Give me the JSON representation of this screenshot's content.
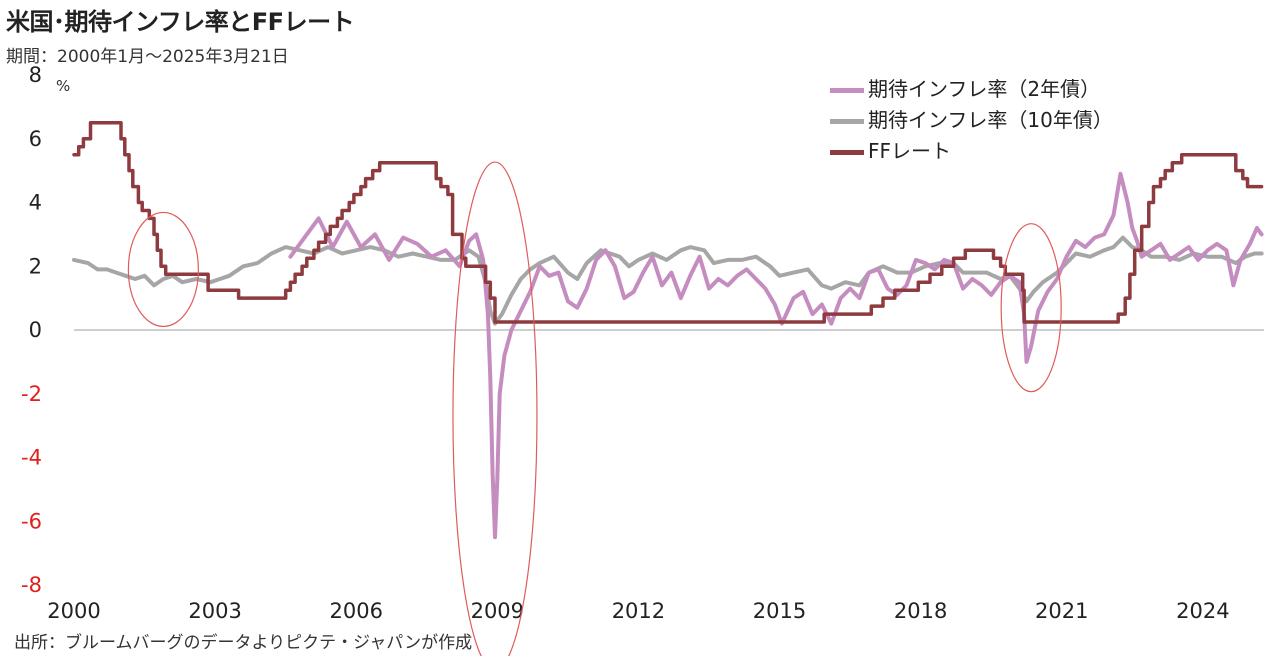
{
  "title": "米国･期待インフレ率とFFレート",
  "subtitle": "期間：2000年1月～2025年3月21日",
  "source": "出所：ブルームバーグのデータよりピクテ・ジャパンが作成",
  "colors": {
    "inflation_2y": "#c58cc0",
    "inflation_10y": "#a6a6a6",
    "ff_rate": "#8e3b3f",
    "axis_negative": "#e0201b",
    "zero_line": "#bfbfbf",
    "ellipse": "#e05b5b"
  },
  "chart_data": {
    "type": "line",
    "title": "米国･期待インフレ率とFFレート",
    "unit_label": "%",
    "xlim": [
      2000.0,
      2025.3
    ],
    "ylim": [
      -8,
      8
    ],
    "y_ticks": [
      8,
      6,
      4,
      2,
      0,
      -2,
      -4,
      -6,
      -8
    ],
    "x_tick_labels": [
      "2000",
      "2003",
      "2006",
      "2009",
      "2012",
      "2015",
      "2018",
      "2021",
      "2024"
    ],
    "grid": false,
    "legend_position": "top-right",
    "series": [
      {
        "name": "期待インフレ率（2年債）",
        "key": "inflation_2y",
        "points": [
          [
            2004.6,
            2.3
          ],
          [
            2004.9,
            2.9
          ],
          [
            2005.2,
            3.5
          ],
          [
            2005.5,
            2.6
          ],
          [
            2005.8,
            3.4
          ],
          [
            2006.1,
            2.6
          ],
          [
            2006.4,
            3.0
          ],
          [
            2006.7,
            2.2
          ],
          [
            2007.0,
            2.9
          ],
          [
            2007.3,
            2.7
          ],
          [
            2007.6,
            2.3
          ],
          [
            2007.9,
            2.5
          ],
          [
            2008.2,
            2.0
          ],
          [
            2008.4,
            2.8
          ],
          [
            2008.55,
            3.0
          ],
          [
            2008.7,
            2.2
          ],
          [
            2008.8,
            0.5
          ],
          [
            2008.85,
            -1.5
          ],
          [
            2008.9,
            -4.5
          ],
          [
            2008.95,
            -6.5
          ],
          [
            2009.0,
            -4.7
          ],
          [
            2009.05,
            -2.0
          ],
          [
            2009.15,
            -0.8
          ],
          [
            2009.3,
            0.0
          ],
          [
            2009.5,
            0.6
          ],
          [
            2009.7,
            1.2
          ],
          [
            2009.9,
            2.0
          ],
          [
            2010.1,
            1.7
          ],
          [
            2010.3,
            1.8
          ],
          [
            2010.5,
            0.9
          ],
          [
            2010.7,
            0.7
          ],
          [
            2010.9,
            1.3
          ],
          [
            2011.1,
            2.2
          ],
          [
            2011.3,
            2.5
          ],
          [
            2011.5,
            2.0
          ],
          [
            2011.7,
            1.0
          ],
          [
            2011.9,
            1.2
          ],
          [
            2012.1,
            1.8
          ],
          [
            2012.3,
            2.3
          ],
          [
            2012.5,
            1.4
          ],
          [
            2012.7,
            1.8
          ],
          [
            2012.9,
            1.0
          ],
          [
            2013.1,
            1.7
          ],
          [
            2013.3,
            2.3
          ],
          [
            2013.5,
            1.3
          ],
          [
            2013.7,
            1.6
          ],
          [
            2013.9,
            1.4
          ],
          [
            2014.1,
            1.7
          ],
          [
            2014.3,
            1.9
          ],
          [
            2014.5,
            1.6
          ],
          [
            2014.7,
            1.3
          ],
          [
            2014.9,
            0.8
          ],
          [
            2015.05,
            0.2
          ],
          [
            2015.3,
            1.0
          ],
          [
            2015.5,
            1.2
          ],
          [
            2015.7,
            0.5
          ],
          [
            2015.9,
            0.8
          ],
          [
            2016.1,
            0.2
          ],
          [
            2016.3,
            1.0
          ],
          [
            2016.5,
            1.3
          ],
          [
            2016.7,
            1.0
          ],
          [
            2016.9,
            1.8
          ],
          [
            2017.1,
            1.9
          ],
          [
            2017.3,
            1.3
          ],
          [
            2017.5,
            1.1
          ],
          [
            2017.7,
            1.4
          ],
          [
            2017.9,
            2.2
          ],
          [
            2018.1,
            2.1
          ],
          [
            2018.3,
            1.9
          ],
          [
            2018.5,
            2.2
          ],
          [
            2018.7,
            2.1
          ],
          [
            2018.9,
            1.3
          ],
          [
            2019.1,
            1.6
          ],
          [
            2019.3,
            1.4
          ],
          [
            2019.5,
            1.1
          ],
          [
            2019.7,
            1.5
          ],
          [
            2019.9,
            1.7
          ],
          [
            2020.1,
            1.5
          ],
          [
            2020.2,
            0.5
          ],
          [
            2020.25,
            -1.0
          ],
          [
            2020.35,
            -0.5
          ],
          [
            2020.5,
            0.6
          ],
          [
            2020.7,
            1.2
          ],
          [
            2020.9,
            1.6
          ],
          [
            2021.1,
            2.3
          ],
          [
            2021.3,
            2.8
          ],
          [
            2021.5,
            2.6
          ],
          [
            2021.7,
            2.9
          ],
          [
            2021.9,
            3.0
          ],
          [
            2022.1,
            3.6
          ],
          [
            2022.25,
            4.9
          ],
          [
            2022.4,
            4.0
          ],
          [
            2022.5,
            3.2
          ],
          [
            2022.6,
            2.8
          ],
          [
            2022.7,
            2.3
          ],
          [
            2022.9,
            2.5
          ],
          [
            2023.1,
            2.7
          ],
          [
            2023.3,
            2.2
          ],
          [
            2023.5,
            2.4
          ],
          [
            2023.7,
            2.6
          ],
          [
            2023.9,
            2.2
          ],
          [
            2024.1,
            2.5
          ],
          [
            2024.3,
            2.7
          ],
          [
            2024.5,
            2.5
          ],
          [
            2024.65,
            1.4
          ],
          [
            2024.8,
            2.2
          ],
          [
            2025.0,
            2.7
          ],
          [
            2025.15,
            3.2
          ],
          [
            2025.25,
            3.0
          ]
        ]
      },
      {
        "name": "期待インフレ率（10年債）",
        "key": "inflation_10y",
        "points": [
          [
            2000.0,
            2.2
          ],
          [
            2000.3,
            2.1
          ],
          [
            2000.5,
            1.9
          ],
          [
            2000.7,
            1.9
          ],
          [
            2000.9,
            1.8
          ],
          [
            2001.1,
            1.7
          ],
          [
            2001.3,
            1.6
          ],
          [
            2001.5,
            1.7
          ],
          [
            2001.7,
            1.4
          ],
          [
            2001.9,
            1.6
          ],
          [
            2002.1,
            1.7
          ],
          [
            2002.3,
            1.5
          ],
          [
            2002.6,
            1.6
          ],
          [
            2002.9,
            1.5
          ],
          [
            2003.1,
            1.6
          ],
          [
            2003.3,
            1.7
          ],
          [
            2003.6,
            2.0
          ],
          [
            2003.9,
            2.1
          ],
          [
            2004.2,
            2.4
          ],
          [
            2004.5,
            2.6
          ],
          [
            2004.8,
            2.5
          ],
          [
            2005.1,
            2.4
          ],
          [
            2005.4,
            2.6
          ],
          [
            2005.7,
            2.4
          ],
          [
            2006.0,
            2.5
          ],
          [
            2006.3,
            2.6
          ],
          [
            2006.6,
            2.5
          ],
          [
            2006.9,
            2.3
          ],
          [
            2007.2,
            2.4
          ],
          [
            2007.5,
            2.3
          ],
          [
            2007.8,
            2.2
          ],
          [
            2008.1,
            2.2
          ],
          [
            2008.4,
            2.5
          ],
          [
            2008.6,
            2.3
          ],
          [
            2008.75,
            1.5
          ],
          [
            2008.85,
            0.6
          ],
          [
            2008.95,
            0.2
          ],
          [
            2009.1,
            0.5
          ],
          [
            2009.3,
            1.1
          ],
          [
            2009.5,
            1.6
          ],
          [
            2009.7,
            1.9
          ],
          [
            2009.9,
            2.1
          ],
          [
            2010.2,
            2.3
          ],
          [
            2010.5,
            1.8
          ],
          [
            2010.7,
            1.6
          ],
          [
            2010.9,
            2.1
          ],
          [
            2011.2,
            2.5
          ],
          [
            2011.4,
            2.4
          ],
          [
            2011.6,
            2.3
          ],
          [
            2011.8,
            2.0
          ],
          [
            2012.0,
            2.2
          ],
          [
            2012.3,
            2.4
          ],
          [
            2012.6,
            2.2
          ],
          [
            2012.9,
            2.5
          ],
          [
            2013.1,
            2.6
          ],
          [
            2013.4,
            2.5
          ],
          [
            2013.6,
            2.1
          ],
          [
            2013.9,
            2.2
          ],
          [
            2014.2,
            2.2
          ],
          [
            2014.5,
            2.3
          ],
          [
            2014.8,
            2.0
          ],
          [
            2015.0,
            1.7
          ],
          [
            2015.3,
            1.8
          ],
          [
            2015.6,
            1.9
          ],
          [
            2015.9,
            1.4
          ],
          [
            2016.1,
            1.3
          ],
          [
            2016.4,
            1.5
          ],
          [
            2016.7,
            1.4
          ],
          [
            2016.9,
            1.8
          ],
          [
            2017.2,
            2.0
          ],
          [
            2017.5,
            1.8
          ],
          [
            2017.8,
            1.8
          ],
          [
            2018.1,
            2.0
          ],
          [
            2018.4,
            2.1
          ],
          [
            2018.7,
            2.1
          ],
          [
            2018.9,
            1.8
          ],
          [
            2019.1,
            1.8
          ],
          [
            2019.4,
            1.8
          ],
          [
            2019.7,
            1.6
          ],
          [
            2019.9,
            1.7
          ],
          [
            2020.15,
            1.2
          ],
          [
            2020.25,
            0.9
          ],
          [
            2020.4,
            1.2
          ],
          [
            2020.6,
            1.5
          ],
          [
            2020.9,
            1.8
          ],
          [
            2021.1,
            2.1
          ],
          [
            2021.3,
            2.4
          ],
          [
            2021.6,
            2.3
          ],
          [
            2021.9,
            2.5
          ],
          [
            2022.1,
            2.6
          ],
          [
            2022.3,
            2.9
          ],
          [
            2022.5,
            2.6
          ],
          [
            2022.7,
            2.5
          ],
          [
            2022.9,
            2.3
          ],
          [
            2023.2,
            2.3
          ],
          [
            2023.5,
            2.2
          ],
          [
            2023.8,
            2.4
          ],
          [
            2024.1,
            2.3
          ],
          [
            2024.4,
            2.3
          ],
          [
            2024.7,
            2.1
          ],
          [
            2024.9,
            2.3
          ],
          [
            2025.1,
            2.4
          ],
          [
            2025.25,
            2.4
          ]
        ]
      },
      {
        "name": "FFレート",
        "key": "ff_rate",
        "points": [
          [
            2000.0,
            5.5
          ],
          [
            2000.1,
            5.75
          ],
          [
            2000.2,
            6.0
          ],
          [
            2000.35,
            6.5
          ],
          [
            2000.95,
            6.5
          ],
          [
            2001.0,
            6.0
          ],
          [
            2001.08,
            5.5
          ],
          [
            2001.17,
            5.0
          ],
          [
            2001.25,
            4.5
          ],
          [
            2001.37,
            4.0
          ],
          [
            2001.45,
            3.75
          ],
          [
            2001.6,
            3.5
          ],
          [
            2001.7,
            3.0
          ],
          [
            2001.77,
            2.5
          ],
          [
            2001.85,
            2.0
          ],
          [
            2001.95,
            1.75
          ],
          [
            2002.85,
            1.25
          ],
          [
            2003.5,
            1.0
          ],
          [
            2004.5,
            1.25
          ],
          [
            2004.6,
            1.5
          ],
          [
            2004.7,
            1.75
          ],
          [
            2004.85,
            2.0
          ],
          [
            2004.95,
            2.25
          ],
          [
            2005.1,
            2.5
          ],
          [
            2005.2,
            2.75
          ],
          [
            2005.35,
            3.0
          ],
          [
            2005.45,
            3.25
          ],
          [
            2005.6,
            3.5
          ],
          [
            2005.7,
            3.75
          ],
          [
            2005.85,
            4.0
          ],
          [
            2005.95,
            4.25
          ],
          [
            2006.1,
            4.5
          ],
          [
            2006.2,
            4.75
          ],
          [
            2006.35,
            5.0
          ],
          [
            2006.5,
            5.25
          ],
          [
            2007.7,
            4.75
          ],
          [
            2007.8,
            4.5
          ],
          [
            2007.95,
            4.25
          ],
          [
            2008.05,
            3.0
          ],
          [
            2008.25,
            2.25
          ],
          [
            2008.33,
            2.0
          ],
          [
            2008.75,
            1.5
          ],
          [
            2008.85,
            1.0
          ],
          [
            2008.95,
            0.25
          ],
          [
            2015.95,
            0.5
          ],
          [
            2016.95,
            0.75
          ],
          [
            2017.2,
            1.0
          ],
          [
            2017.45,
            1.25
          ],
          [
            2017.95,
            1.5
          ],
          [
            2018.2,
            1.75
          ],
          [
            2018.45,
            2.0
          ],
          [
            2018.7,
            2.25
          ],
          [
            2018.95,
            2.5
          ],
          [
            2019.55,
            2.25
          ],
          [
            2019.7,
            2.0
          ],
          [
            2019.8,
            1.75
          ],
          [
            2020.17,
            1.25
          ],
          [
            2020.2,
            0.25
          ],
          [
            2022.2,
            0.5
          ],
          [
            2022.35,
            1.0
          ],
          [
            2022.45,
            1.75
          ],
          [
            2022.55,
            2.5
          ],
          [
            2022.7,
            3.25
          ],
          [
            2022.85,
            4.0
          ],
          [
            2022.95,
            4.5
          ],
          [
            2023.1,
            4.75
          ],
          [
            2023.2,
            5.0
          ],
          [
            2023.35,
            5.25
          ],
          [
            2023.55,
            5.5
          ],
          [
            2024.7,
            5.0
          ],
          [
            2024.85,
            4.75
          ],
          [
            2024.95,
            4.5
          ],
          [
            2025.25,
            4.5
          ]
        ]
      }
    ]
  }
}
